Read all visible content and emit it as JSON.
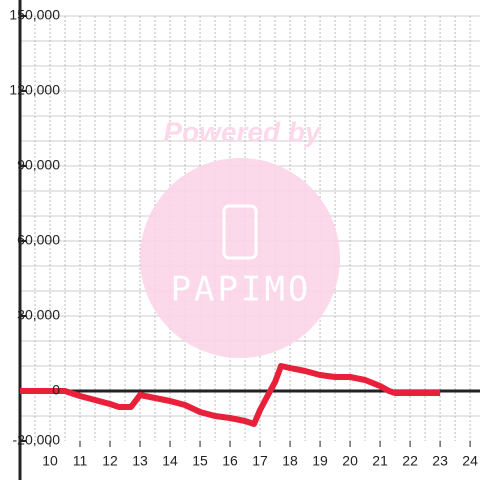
{
  "chart_data": {
    "type": "line",
    "x": [
      9,
      10.5,
      11,
      11.5,
      12,
      12.3,
      12.7,
      13,
      13.5,
      14,
      14.5,
      15,
      15.5,
      16,
      16.5,
      16.8,
      17,
      17.3,
      17.5,
      17.7,
      18,
      18.5,
      19,
      19.5,
      20,
      20.5,
      21,
      21.3,
      21.5,
      22,
      23
    ],
    "series": [
      {
        "color": "#e8203a",
        "values": [
          0,
          0,
          -2000,
          -3600,
          -5200,
          -6400,
          -6400,
          -1600,
          -2800,
          -4000,
          -5600,
          -8400,
          -10000,
          -10800,
          -12000,
          -13200,
          -7600,
          -800,
          3600,
          10000,
          9200,
          8000,
          6400,
          5600,
          5600,
          4400,
          2000,
          0,
          -800,
          -800,
          -800
        ]
      }
    ],
    "xlim": [
      9,
      24.33
    ],
    "ylim": [
      -20000,
      150000
    ],
    "xticks": [
      10,
      11,
      12,
      13,
      14,
      15,
      16,
      17,
      18,
      19,
      20,
      21,
      22,
      23,
      24
    ],
    "yticks": [
      {
        "value": -20000,
        "label": "-20,000"
      },
      {
        "value": 0,
        "label": "0"
      },
      {
        "value": 30000,
        "label": "30,000"
      },
      {
        "value": 60000,
        "label": "60,000"
      },
      {
        "value": 90000,
        "label": "90,000"
      },
      {
        "value": 120000,
        "label": "120,000"
      },
      {
        "value": 150000,
        "label": "150,000"
      }
    ],
    "ygrid": [
      -10000,
      10000,
      20000,
      30000,
      40000,
      50000,
      60000,
      70000,
      80000,
      90000,
      100000,
      110000,
      120000,
      130000,
      140000,
      150000
    ],
    "xgrid": [
      9.5,
      10,
      10.5,
      11,
      11.5,
      12,
      12.5,
      13,
      13.5,
      14,
      14.5,
      15,
      15.5,
      16,
      16.5,
      17,
      17.5,
      18,
      18.5,
      19,
      19.5,
      20,
      20.5,
      21,
      21.5,
      22,
      22.5,
      23,
      23.5,
      24
    ],
    "watermark": {
      "top": "Powered by",
      "logo": "PAPIMO"
    }
  }
}
